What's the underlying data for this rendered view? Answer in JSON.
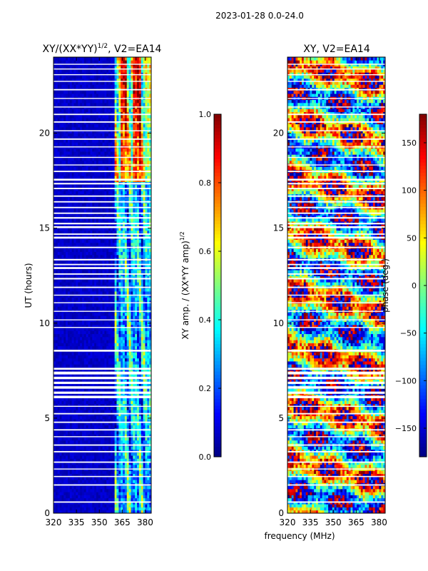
{
  "figure_title": "2023-01-28 0.0-24.0",
  "shared_xlabel": "frequency (MHz)",
  "colors": {
    "background": "#ffffff",
    "gap": "#ffffff",
    "axis": "#000000",
    "jet_dark_blue": "#00007f"
  },
  "chart_data": [
    {
      "type": "heatmap",
      "title_main": "XY/(XX*YY)",
      "title_sup": "1/2",
      "title_rest": ", V2=EA14",
      "xlabel": "",
      "ylabel": "UT (hours)",
      "xlim": [
        320,
        384
      ],
      "ylim": [
        0,
        24
      ],
      "xticks": [
        320,
        335,
        350,
        365,
        380
      ],
      "xtick_labels": [
        "320",
        "335",
        "350",
        "365",
        "380"
      ],
      "yticks": [
        0,
        5,
        10,
        15,
        20
      ],
      "ytick_labels": [
        "0",
        "5",
        "10",
        "15",
        "20"
      ],
      "colorbar": {
        "label_main": "XY amp. / (XX*YY amp)",
        "label_sup": "1/2",
        "range": [
          0.0,
          1.0
        ],
        "ticks": [
          0.0,
          0.2,
          0.4,
          0.6,
          0.8,
          1.0
        ],
        "tick_labels": [
          "0.0",
          "0.2",
          "0.4",
          "0.6",
          "0.8",
          "1.0"
        ],
        "colormap": "jet"
      },
      "pattern": "amplitude"
    },
    {
      "type": "heatmap",
      "title_main": "XY, V2=EA14",
      "title_sup": "",
      "title_rest": "",
      "xlabel": "frequency (MHz)",
      "ylabel": "",
      "xlim": [
        320,
        384
      ],
      "ylim": [
        0,
        24
      ],
      "xticks": [
        320,
        335,
        350,
        365,
        380
      ],
      "xtick_labels": [
        "320",
        "335",
        "350",
        "365",
        "380"
      ],
      "yticks": [
        0,
        5,
        10,
        15,
        20
      ],
      "ytick_labels": [
        "0",
        "5",
        "10",
        "15",
        "20"
      ],
      "colorbar": {
        "label_main": "phase (deg.)",
        "label_sup": "",
        "range": [
          -180,
          180
        ],
        "ticks": [
          -150,
          -100,
          -50,
          0,
          50,
          100,
          150
        ],
        "tick_labels": [
          "−150",
          "−100",
          "−50",
          "0",
          "50",
          "100",
          "150"
        ],
        "colormap": "jet"
      },
      "pattern": "phase"
    }
  ],
  "flagged_time_ranges_hours": [
    [
      0.55,
      0.62
    ],
    [
      1.45,
      1.52
    ],
    [
      1.9,
      1.96
    ],
    [
      2.3,
      2.35
    ],
    [
      2.65,
      2.72
    ],
    [
      3.2,
      3.27
    ],
    [
      3.55,
      3.62
    ],
    [
      4.0,
      4.05
    ],
    [
      4.35,
      4.42
    ],
    [
      4.75,
      4.82
    ],
    [
      5.2,
      5.27
    ],
    [
      5.6,
      5.65
    ],
    [
      6.05,
      6.18
    ],
    [
      6.28,
      6.4
    ],
    [
      6.55,
      6.68
    ],
    [
      6.8,
      6.92
    ],
    [
      7.05,
      7.18
    ],
    [
      7.3,
      7.45
    ],
    [
      7.55,
      7.65
    ],
    [
      8.5,
      8.6
    ],
    [
      9.75,
      9.8
    ],
    [
      10.15,
      10.2
    ],
    [
      10.6,
      10.65
    ],
    [
      11.05,
      11.1
    ],
    [
      11.45,
      11.5
    ],
    [
      11.85,
      11.92
    ],
    [
      12.3,
      12.38
    ],
    [
      12.55,
      12.62
    ],
    [
      12.85,
      12.95
    ],
    [
      13.05,
      13.12
    ],
    [
      13.3,
      13.38
    ],
    [
      13.95,
      14.02
    ],
    [
      14.45,
      14.55
    ],
    [
      14.65,
      14.72
    ],
    [
      15.0,
      15.1
    ],
    [
      15.2,
      15.28
    ],
    [
      15.5,
      15.58
    ],
    [
      15.75,
      15.82
    ],
    [
      16.05,
      16.12
    ],
    [
      16.35,
      16.42
    ],
    [
      16.65,
      16.72
    ],
    [
      17.05,
      17.12
    ],
    [
      17.3,
      17.38
    ],
    [
      17.5,
      17.6
    ],
    [
      17.95,
      18.02
    ],
    [
      18.3,
      18.35
    ],
    [
      18.7,
      18.75
    ],
    [
      19.25,
      19.3
    ],
    [
      19.65,
      19.72
    ],
    [
      20.1,
      20.15
    ],
    [
      20.55,
      20.62
    ],
    [
      20.95,
      21.02
    ],
    [
      21.35,
      21.4
    ],
    [
      21.8,
      21.85
    ],
    [
      22.25,
      22.32
    ],
    [
      22.7,
      22.75
    ],
    [
      23.05,
      23.1
    ],
    [
      23.35,
      23.4
    ],
    [
      23.6,
      23.65
    ]
  ]
}
